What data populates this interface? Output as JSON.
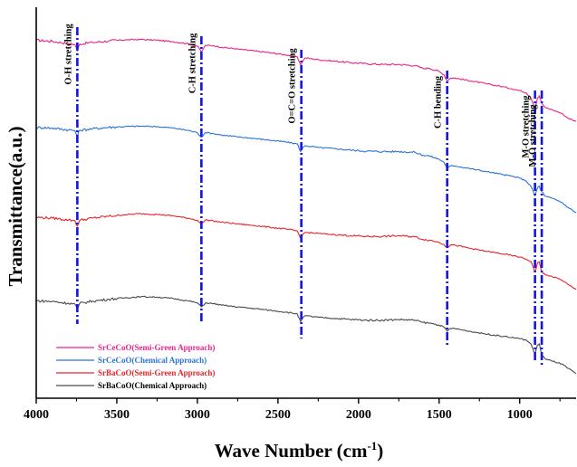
{
  "chart_data": {
    "type": "line",
    "xlabel": "Wave Number (cm",
    "xlabel_sup": "-1",
    "xlabel_close": ")",
    "ylabel": "Transmittance(a.u.)",
    "xlim": [
      4000,
      650
    ],
    "x_reversed": true,
    "x_ticks": [
      4000,
      3500,
      3000,
      2500,
      2000,
      1500,
      1000
    ],
    "x_tick_labels": [
      "4000",
      "3500",
      "3000",
      "2500",
      "2000",
      "1500",
      "1000"
    ],
    "ylim": [
      0,
      100
    ],
    "y_ticks_labeled": false,
    "grid": false,
    "legend_position": "bottom-left",
    "series": [
      {
        "name": "SrCeCoO(Semi-Green Approach)",
        "color": "#e8258a",
        "points": [
          [
            4000,
            92.5
          ],
          [
            3900,
            92.2
          ],
          [
            3800,
            91.6
          ],
          [
            3760,
            91.3
          ],
          [
            3745,
            89.6
          ],
          [
            3730,
            91.5
          ],
          [
            3650,
            91.9
          ],
          [
            3550,
            92.3
          ],
          [
            3450,
            92.6
          ],
          [
            3350,
            92.7
          ],
          [
            3250,
            92.5
          ],
          [
            3150,
            92.1
          ],
          [
            3050,
            91.5
          ],
          [
            3000,
            90.9
          ],
          [
            2975,
            89.3
          ],
          [
            2950,
            91.1
          ],
          [
            2900,
            91.0
          ],
          [
            2850,
            90.6
          ],
          [
            2750,
            90.1
          ],
          [
            2650,
            89.6
          ],
          [
            2550,
            89.1
          ],
          [
            2450,
            88.5
          ],
          [
            2380,
            88.0
          ],
          [
            2360,
            85.8
          ],
          [
            2345,
            86.9
          ],
          [
            2330,
            87.7
          ],
          [
            2250,
            87.2
          ],
          [
            2150,
            86.8
          ],
          [
            2050,
            86.4
          ],
          [
            1950,
            86.1
          ],
          [
            1850,
            85.9
          ],
          [
            1750,
            85.9
          ],
          [
            1650,
            85.6
          ],
          [
            1600,
            84.8
          ],
          [
            1560,
            84.9
          ],
          [
            1500,
            84.0
          ],
          [
            1470,
            83.1
          ],
          [
            1450,
            81.4
          ],
          [
            1430,
            82.2
          ],
          [
            1400,
            82.2
          ],
          [
            1300,
            81.4
          ],
          [
            1200,
            80.6
          ],
          [
            1100,
            79.8
          ],
          [
            1050,
            79.3
          ],
          [
            1000,
            78.8
          ],
          [
            960,
            78.2
          ],
          [
            930,
            76.8
          ],
          [
            905,
            74.0
          ],
          [
            890,
            76.7
          ],
          [
            878,
            77.4
          ],
          [
            870,
            76.2
          ],
          [
            860,
            75.2
          ],
          [
            840,
            74.1
          ],
          [
            800,
            73.6
          ],
          [
            740,
            72.6
          ],
          [
            700,
            71.3
          ],
          [
            650,
            70.4
          ]
        ]
      },
      {
        "name": "SrCeCoO(Chemical Approach)",
        "color": "#2a74d5",
        "points": [
          [
            4000,
            68.8
          ],
          [
            3900,
            68.6
          ],
          [
            3800,
            68.1
          ],
          [
            3760,
            67.9
          ],
          [
            3745,
            66.3
          ],
          [
            3730,
            68.0
          ],
          [
            3650,
            68.4
          ],
          [
            3550,
            68.8
          ],
          [
            3450,
            69.0
          ],
          [
            3350,
            69.1
          ],
          [
            3250,
            69.0
          ],
          [
            3150,
            68.6
          ],
          [
            3050,
            67.9
          ],
          [
            3000,
            67.3
          ],
          [
            2975,
            66.1
          ],
          [
            2950,
            67.4
          ],
          [
            2900,
            67.1
          ],
          [
            2850,
            66.7
          ],
          [
            2750,
            66.2
          ],
          [
            2650,
            65.8
          ],
          [
            2550,
            65.3
          ],
          [
            2450,
            64.8
          ],
          [
            2380,
            64.3
          ],
          [
            2360,
            62.2
          ],
          [
            2345,
            63.3
          ],
          [
            2330,
            63.8
          ],
          [
            2250,
            63.3
          ],
          [
            2150,
            63.0
          ],
          [
            2050,
            62.6
          ],
          [
            1950,
            62.3
          ],
          [
            1850,
            62.2
          ],
          [
            1750,
            62.2
          ],
          [
            1650,
            62.0
          ],
          [
            1600,
            61.2
          ],
          [
            1560,
            61.0
          ],
          [
            1500,
            60.1
          ],
          [
            1470,
            59.3
          ],
          [
            1450,
            57.6
          ],
          [
            1430,
            58.3
          ],
          [
            1400,
            58.3
          ],
          [
            1300,
            57.5
          ],
          [
            1200,
            56.7
          ],
          [
            1100,
            55.9
          ],
          [
            1050,
            55.5
          ],
          [
            1000,
            55.0
          ],
          [
            960,
            54.2
          ],
          [
            930,
            52.7
          ],
          [
            905,
            50.2
          ],
          [
            890,
            52.3
          ],
          [
            878,
            52.8
          ],
          [
            870,
            51.7
          ],
          [
            860,
            51.2
          ],
          [
            840,
            50.0
          ],
          [
            800,
            49.5
          ],
          [
            740,
            48.4
          ],
          [
            700,
            47.0
          ],
          [
            650,
            45.6
          ]
        ]
      },
      {
        "name": "SrBaCoO(Semi-Green Approach)",
        "color": "#e8242b",
        "points": [
          [
            4000,
            44.3
          ],
          [
            3900,
            44.1
          ],
          [
            3800,
            43.6
          ],
          [
            3760,
            43.4
          ],
          [
            3745,
            41.9
          ],
          [
            3730,
            43.5
          ],
          [
            3650,
            44.1
          ],
          [
            3550,
            44.6
          ],
          [
            3450,
            45.0
          ],
          [
            3350,
            45.3
          ],
          [
            3250,
            45.1
          ],
          [
            3150,
            44.7
          ],
          [
            3050,
            44.0
          ],
          [
            3000,
            43.5
          ],
          [
            2975,
            42.4
          ],
          [
            2950,
            43.6
          ],
          [
            2900,
            43.3
          ],
          [
            2850,
            43.0
          ],
          [
            2750,
            42.5
          ],
          [
            2650,
            42.1
          ],
          [
            2550,
            41.6
          ],
          [
            2450,
            41.1
          ],
          [
            2380,
            40.6
          ],
          [
            2360,
            38.6
          ],
          [
            2345,
            39.7
          ],
          [
            2330,
            40.2
          ],
          [
            2250,
            39.9
          ],
          [
            2150,
            39.6
          ],
          [
            2050,
            39.3
          ],
          [
            1950,
            39.1
          ],
          [
            1850,
            39.1
          ],
          [
            1750,
            39.3
          ],
          [
            1650,
            39.0
          ],
          [
            1600,
            38.3
          ],
          [
            1560,
            38.1
          ],
          [
            1500,
            37.5
          ],
          [
            1470,
            36.9
          ],
          [
            1450,
            36.0
          ],
          [
            1430,
            36.8
          ],
          [
            1400,
            36.7
          ],
          [
            1300,
            35.8
          ],
          [
            1200,
            35.0
          ],
          [
            1100,
            34.3
          ],
          [
            1050,
            33.9
          ],
          [
            1000,
            33.5
          ],
          [
            960,
            32.9
          ],
          [
            930,
            32.3
          ],
          [
            905,
            29.4
          ],
          [
            890,
            31.8
          ],
          [
            878,
            32.2
          ],
          [
            870,
            30.5
          ],
          [
            860,
            29.4
          ],
          [
            840,
            28.6
          ],
          [
            800,
            28.2
          ],
          [
            740,
            27.3
          ],
          [
            700,
            26.0
          ],
          [
            650,
            24.6
          ]
        ]
      },
      {
        "name": "SrBaCoO(Chemical Approach)",
        "color": "#4a4a4a",
        "points": [
          [
            4000,
            21.6
          ],
          [
            3900,
            21.4
          ],
          [
            3800,
            20.9
          ],
          [
            3760,
            20.7
          ],
          [
            3745,
            19.2
          ],
          [
            3730,
            20.9
          ],
          [
            3650,
            21.5
          ],
          [
            3550,
            22.0
          ],
          [
            3450,
            22.4
          ],
          [
            3350,
            22.7
          ],
          [
            3250,
            22.6
          ],
          [
            3150,
            22.2
          ],
          [
            3050,
            21.5
          ],
          [
            3000,
            21.0
          ],
          [
            2975,
            19.9
          ],
          [
            2950,
            21.0
          ],
          [
            2900,
            20.8
          ],
          [
            2850,
            20.4
          ],
          [
            2750,
            19.9
          ],
          [
            2650,
            19.5
          ],
          [
            2550,
            19.0
          ],
          [
            2450,
            18.5
          ],
          [
            2380,
            18.0
          ],
          [
            2360,
            15.9
          ],
          [
            2345,
            17.0
          ],
          [
            2330,
            17.5
          ],
          [
            2250,
            17.1
          ],
          [
            2150,
            16.8
          ],
          [
            2050,
            16.5
          ],
          [
            1950,
            16.3
          ],
          [
            1850,
            16.3
          ],
          [
            1750,
            16.5
          ],
          [
            1650,
            16.3
          ],
          [
            1600,
            15.7
          ],
          [
            1560,
            15.5
          ],
          [
            1500,
            15.0
          ],
          [
            1470,
            14.4
          ],
          [
            1450,
            13.3
          ],
          [
            1430,
            14.1
          ],
          [
            1400,
            14.0
          ],
          [
            1300,
            13.2
          ],
          [
            1200,
            12.5
          ],
          [
            1100,
            11.9
          ],
          [
            1050,
            11.6
          ],
          [
            1000,
            11.3
          ],
          [
            960,
            10.9
          ],
          [
            930,
            9.8
          ],
          [
            905,
            7.0
          ],
          [
            890,
            9.5
          ],
          [
            878,
            9.9
          ],
          [
            870,
            8.1
          ],
          [
            860,
            6.8
          ],
          [
            840,
            5.7
          ],
          [
            800,
            5.2
          ],
          [
            740,
            4.4
          ],
          [
            700,
            3.2
          ],
          [
            650,
            1.8
          ]
        ]
      }
    ],
    "annotations": [
      {
        "text": "O-H stretching",
        "x": 3745
      },
      {
        "text": "C-H stretching",
        "x": 2975
      },
      {
        "text": "O=C=O stretching",
        "x": 2355
      },
      {
        "text": "C-H bending",
        "x": 1450
      },
      {
        "text": "M-O stretching",
        "x": 905
      },
      {
        "text": "M-O stretching",
        "x": 863
      }
    ],
    "annotation_line_color": "#1414e6"
  }
}
